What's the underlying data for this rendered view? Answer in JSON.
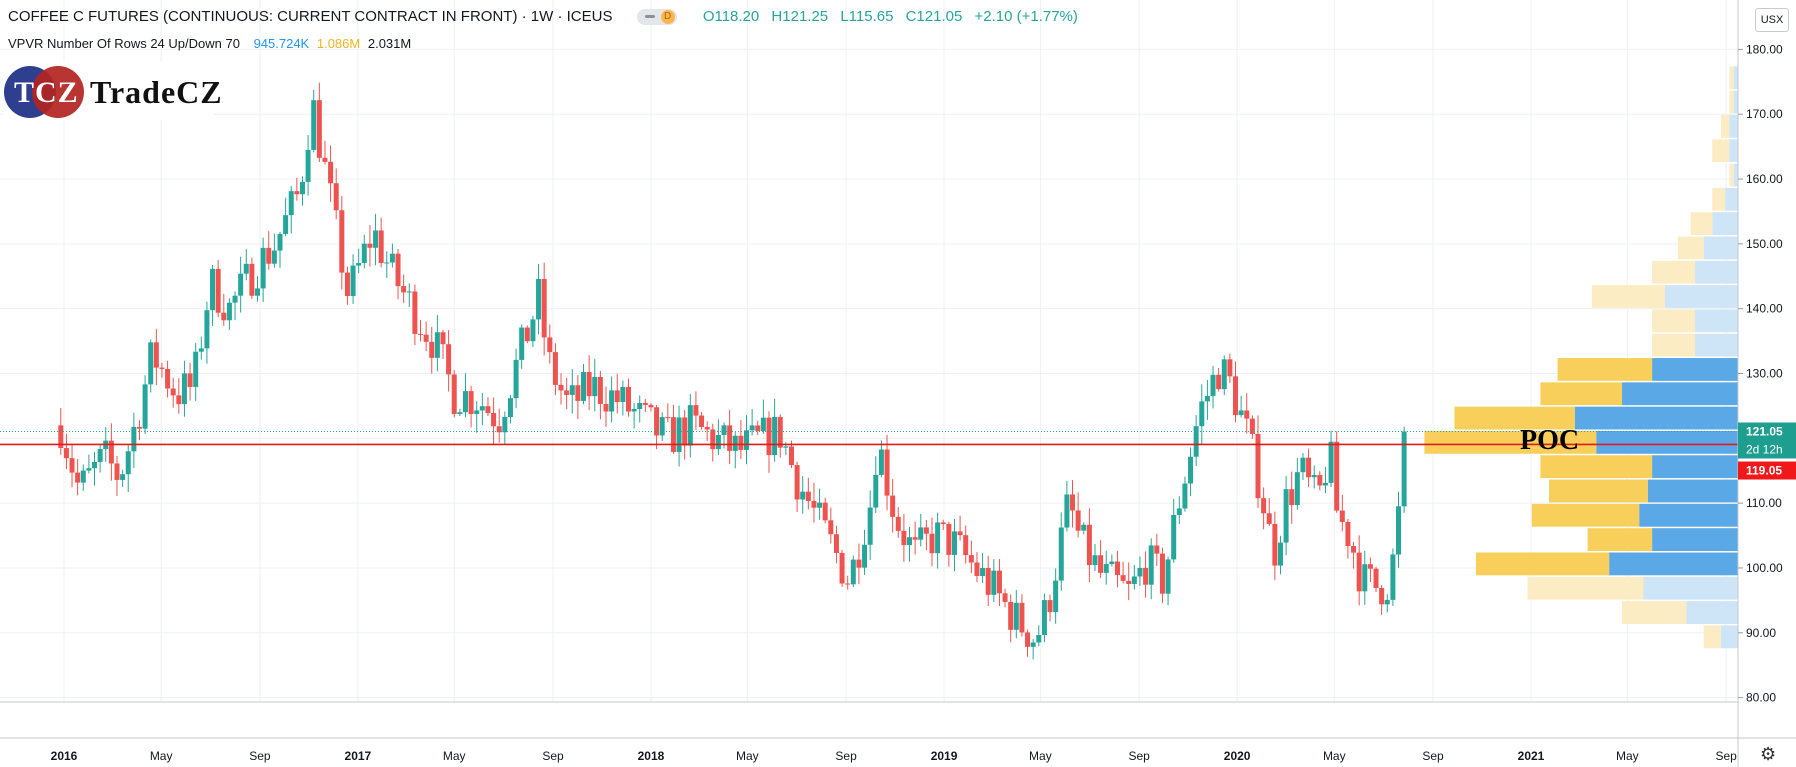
{
  "header": {
    "title": "COFFEE C FUTURES (CONTINUOUS: CURRENT CONTRACT IN FRONT)",
    "interval": "1W",
    "exchange": "ICEUS",
    "badge": "D",
    "open": "O118.20",
    "high": "H121.25",
    "low": "L115.65",
    "close": "C121.05",
    "change": "+2.10 (+1.77%)"
  },
  "indicator": {
    "name": "VPVR Number Of Rows 24 Up/Down 70",
    "up_volume": "945.724K",
    "down_volume": "1.086M",
    "total_volume": "2.031M"
  },
  "logo": {
    "mark": "TCZ",
    "name": "TradeCZ"
  },
  "currency_unit": "USX",
  "annotation": "POC",
  "colors": {
    "up": "#26a69a",
    "down": "#ef5350",
    "poc_line": "#e01b1b",
    "vp_up": "#5aa9e6",
    "vp_down": "#f7cf5a",
    "vp_up_light": "#cde5f6",
    "vp_down_light": "#fcecc4"
  },
  "chart_data": {
    "type": "candlestick",
    "interval": "weekly",
    "ylim": [
      78,
      186
    ],
    "y_ticks": [
      "80.00",
      "90.00",
      "100.00",
      "110.00",
      "120.00",
      "130.00",
      "140.00",
      "150.00",
      "160.00",
      "170.00",
      "180.00"
    ],
    "x_ticks": [
      "2016",
      "May",
      "Sep",
      "2017",
      "May",
      "Sep",
      "2018",
      "May",
      "Sep",
      "2019",
      "May",
      "Sep",
      "2020",
      "May",
      "Sep",
      "2021",
      "May",
      "Sep"
    ],
    "grid": true,
    "price_labels": {
      "last_price": "121.05",
      "countdown": "2d 12h",
      "poc_price": "119.05"
    },
    "poc_price": 119.05,
    "last_price": 121.05,
    "price_path": [
      [
        "2015-12-28",
        122
      ],
      [
        "2016-01-20",
        112
      ],
      [
        "2016-02-20",
        117
      ],
      [
        "2016-03-10",
        114
      ],
      [
        "2016-04-01",
        123
      ],
      [
        "2016-04-20",
        133
      ],
      [
        "2016-05-20",
        127
      ],
      [
        "2016-06-10",
        128
      ],
      [
        "2016-07-01",
        144
      ],
      [
        "2016-07-25",
        140
      ],
      [
        "2016-08-25",
        146
      ],
      [
        "2016-09-20",
        150
      ],
      [
        "2016-10-20",
        158
      ],
      [
        "2016-11-05",
        172
      ],
      [
        "2016-11-20",
        162
      ],
      [
        "2016-12-20",
        142
      ],
      [
        "2017-01-20",
        152
      ],
      [
        "2017-02-10",
        146
      ],
      [
        "2017-03-10",
        140
      ],
      [
        "2017-04-05",
        135
      ],
      [
        "2017-05-01",
        127
      ],
      [
        "2017-06-01",
        126
      ],
      [
        "2017-06-25",
        123
      ],
      [
        "2017-07-25",
        134
      ],
      [
        "2017-08-15",
        142
      ],
      [
        "2017-08-25",
        132
      ],
      [
        "2017-09-20",
        125
      ],
      [
        "2017-10-20",
        128
      ],
      [
        "2017-11-20",
        126
      ],
      [
        "2017-12-20",
        123
      ],
      [
        "2018-01-20",
        120
      ],
      [
        "2018-02-20",
        122
      ],
      [
        "2018-03-20",
        120
      ],
      [
        "2018-04-20",
        118
      ],
      [
        "2018-05-20",
        120
      ],
      [
        "2018-06-10",
        121
      ],
      [
        "2018-07-01",
        114
      ],
      [
        "2018-07-25",
        108
      ],
      [
        "2018-08-20",
        102
      ],
      [
        "2018-09-05",
        98
      ],
      [
        "2018-10-01",
        110
      ],
      [
        "2018-10-10",
        120
      ],
      [
        "2018-11-01",
        108
      ],
      [
        "2018-11-25",
        102
      ],
      [
        "2018-12-20",
        105
      ],
      [
        "2019-01-10",
        104
      ],
      [
        "2019-02-01",
        101
      ],
      [
        "2019-03-01",
        97
      ],
      [
        "2019-04-01",
        92
      ],
      [
        "2019-04-25",
        89
      ],
      [
        "2019-05-10",
        94
      ],
      [
        "2019-06-05",
        110
      ],
      [
        "2019-06-20",
        104
      ],
      [
        "2019-07-15",
        99
      ],
      [
        "2019-08-20",
        96
      ],
      [
        "2019-09-10",
        101
      ],
      [
        "2019-10-01",
        98
      ],
      [
        "2019-10-20",
        110
      ],
      [
        "2019-11-15",
        124
      ],
      [
        "2019-12-10",
        131
      ],
      [
        "2019-12-25",
        128
      ],
      [
        "2020-01-15",
        120
      ],
      [
        "2020-01-31",
        112
      ],
      [
        "2020-02-15",
        102
      ],
      [
        "2020-03-01",
        110
      ],
      [
        "2020-03-20",
        115
      ],
      [
        "2020-04-10",
        110
      ],
      [
        "2020-04-25",
        118
      ],
      [
        "2020-05-05",
        108
      ],
      [
        "2020-05-20",
        105
      ],
      [
        "2020-06-05",
        98
      ],
      [
        "2020-06-25",
        97
      ],
      [
        "2020-07-10",
        98
      ],
      [
        "2020-07-20",
        108
      ],
      [
        "2020-08-01",
        121
      ]
    ],
    "volume_profile": {
      "description": "Visible-range volume profile, 24 rows, up/down split; 70% value area",
      "rows": [
        {
          "low": 87.5,
          "high": 91.25,
          "up": 0.04,
          "down": 0.04,
          "in_value_area": false
        },
        {
          "low": 91.25,
          "high": 95,
          "up": 0.12,
          "down": 0.15,
          "in_value_area": false
        },
        {
          "low": 95,
          "high": 98.75,
          "up": 0.22,
          "down": 0.27,
          "in_value_area": false
        },
        {
          "low": 98.75,
          "high": 102.5,
          "up": 0.3,
          "down": 0.31,
          "in_value_area": true
        },
        {
          "low": 102.5,
          "high": 106.25,
          "up": 0.2,
          "down": 0.15,
          "in_value_area": true
        },
        {
          "low": 106.25,
          "high": 110,
          "up": 0.23,
          "down": 0.25,
          "in_value_area": true
        },
        {
          "low": 110,
          "high": 113.75,
          "up": 0.21,
          "down": 0.23,
          "in_value_area": true
        },
        {
          "low": 113.75,
          "high": 117.5,
          "up": 0.2,
          "down": 0.26,
          "in_value_area": true
        },
        {
          "low": 117.5,
          "high": 121.25,
          "up": 0.33,
          "down": 0.4,
          "in_value_area": true
        },
        {
          "low": 121.25,
          "high": 125,
          "up": 0.38,
          "down": 0.28,
          "in_value_area": true
        },
        {
          "low": 125,
          "high": 128.75,
          "up": 0.27,
          "down": 0.19,
          "in_value_area": true
        },
        {
          "low": 128.75,
          "high": 132.5,
          "up": 0.2,
          "down": 0.22,
          "in_value_area": true
        },
        {
          "low": 132.5,
          "high": 136.25,
          "up": 0.1,
          "down": 0.1,
          "in_value_area": false
        },
        {
          "low": 136.25,
          "high": 140,
          "up": 0.1,
          "down": 0.1,
          "in_value_area": false
        },
        {
          "low": 140,
          "high": 143.75,
          "up": 0.17,
          "down": 0.17,
          "in_value_area": false
        },
        {
          "low": 143.75,
          "high": 147.5,
          "up": 0.1,
          "down": 0.1,
          "in_value_area": false
        },
        {
          "low": 147.5,
          "high": 151.25,
          "up": 0.08,
          "down": 0.06,
          "in_value_area": false
        },
        {
          "low": 151.25,
          "high": 155,
          "up": 0.06,
          "down": 0.05,
          "in_value_area": false
        },
        {
          "low": 155,
          "high": 158.75,
          "up": 0.03,
          "down": 0.03,
          "in_value_area": false
        },
        {
          "low": 158.75,
          "high": 162.5,
          "up": 0.01,
          "down": 0.01,
          "in_value_area": false
        },
        {
          "low": 162.5,
          "high": 166.25,
          "up": 0.02,
          "down": 0.04,
          "in_value_area": false
        },
        {
          "low": 166.25,
          "high": 170,
          "up": 0.02,
          "down": 0.02,
          "in_value_area": false
        },
        {
          "low": 170,
          "high": 173.75,
          "up": 0.01,
          "down": 0.01,
          "in_value_area": false
        },
        {
          "low": 173.75,
          "high": 177.5,
          "up": 0.01,
          "down": 0.01,
          "in_value_area": false
        }
      ]
    }
  }
}
